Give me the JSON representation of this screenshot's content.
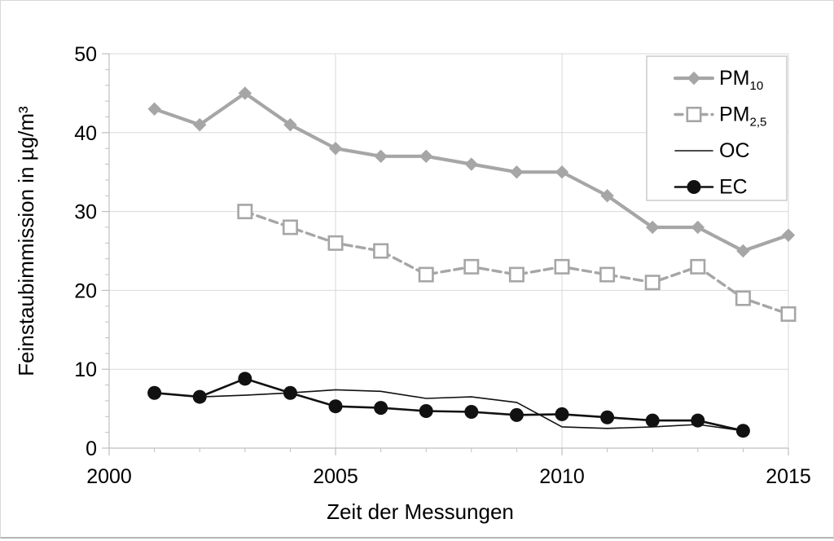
{
  "chart_data": {
    "type": "line",
    "title": "",
    "xlabel": "Zeit der Messungen",
    "ylabel": "Feinstaubimmission in µg/m³",
    "xlim": [
      2000,
      2015
    ],
    "ylim": [
      0,
      50
    ],
    "x_major_ticks": [
      2000,
      2005,
      2010,
      2015
    ],
    "x_minor_step": 1,
    "y_major_ticks": [
      0,
      10,
      20,
      30,
      40,
      50
    ],
    "y_minor_step": 2,
    "grid_vertical_at": [
      2005,
      2010,
      2015
    ],
    "grid_horizontal_at": [
      10,
      20,
      30,
      40,
      50
    ],
    "legend_position": "top-right",
    "series": [
      {
        "name": "PM10",
        "legend_main": "PM",
        "legend_sub": "10",
        "color": "#a6a6a6",
        "line_style": "solid",
        "line_width": 4.2,
        "marker": "diamond",
        "x": [
          2001,
          2002,
          2003,
          2004,
          2005,
          2006,
          2007,
          2008,
          2009,
          2010,
          2011,
          2012,
          2013,
          2014,
          2015
        ],
        "values": [
          43,
          41,
          45,
          41,
          38,
          37,
          37,
          36,
          35,
          35,
          32,
          28,
          28,
          25,
          27
        ]
      },
      {
        "name": "PM2,5",
        "legend_main": "PM",
        "legend_sub": "2,5",
        "color": "#a6a6a6",
        "line_style": "dashed",
        "line_width": 3.4,
        "marker": "square-open",
        "x": [
          2003,
          2004,
          2005,
          2006,
          2007,
          2008,
          2009,
          2010,
          2011,
          2012,
          2013,
          2014,
          2015
        ],
        "values": [
          30,
          28,
          26,
          25,
          22,
          23,
          22,
          23,
          22,
          21,
          23,
          19,
          17
        ]
      },
      {
        "name": "OC",
        "legend_main": "OC",
        "legend_sub": "",
        "color": "#111111",
        "line_style": "solid",
        "line_width": 1.6,
        "marker": "none",
        "x": [
          2001,
          2002,
          2003,
          2004,
          2005,
          2006,
          2007,
          2008,
          2009,
          2010,
          2011,
          2012,
          2013,
          2014
        ],
        "values": [
          7.0,
          6.5,
          6.7,
          7.0,
          7.4,
          7.2,
          6.3,
          6.5,
          5.8,
          2.7,
          2.5,
          2.7,
          3.0,
          2.2
        ]
      },
      {
        "name": "EC",
        "legend_main": "EC",
        "legend_sub": "",
        "color": "#111111",
        "line_style": "solid",
        "line_width": 2.6,
        "marker": "circle",
        "x": [
          2001,
          2002,
          2003,
          2004,
          2005,
          2006,
          2007,
          2008,
          2009,
          2010,
          2011,
          2012,
          2013,
          2014
        ],
        "values": [
          7.0,
          6.5,
          8.8,
          7.0,
          5.3,
          5.1,
          4.7,
          4.6,
          4.2,
          4.3,
          3.9,
          3.5,
          3.5,
          2.2
        ]
      }
    ]
  },
  "styles": {
    "grid_color": "#d9d9d9",
    "axis_color": "#bfbfbf",
    "text_color": "#000000",
    "series_gray": "#a6a6a6",
    "series_black": "#111111",
    "background": "#ffffff",
    "legend_border": "#bfbfbf"
  }
}
